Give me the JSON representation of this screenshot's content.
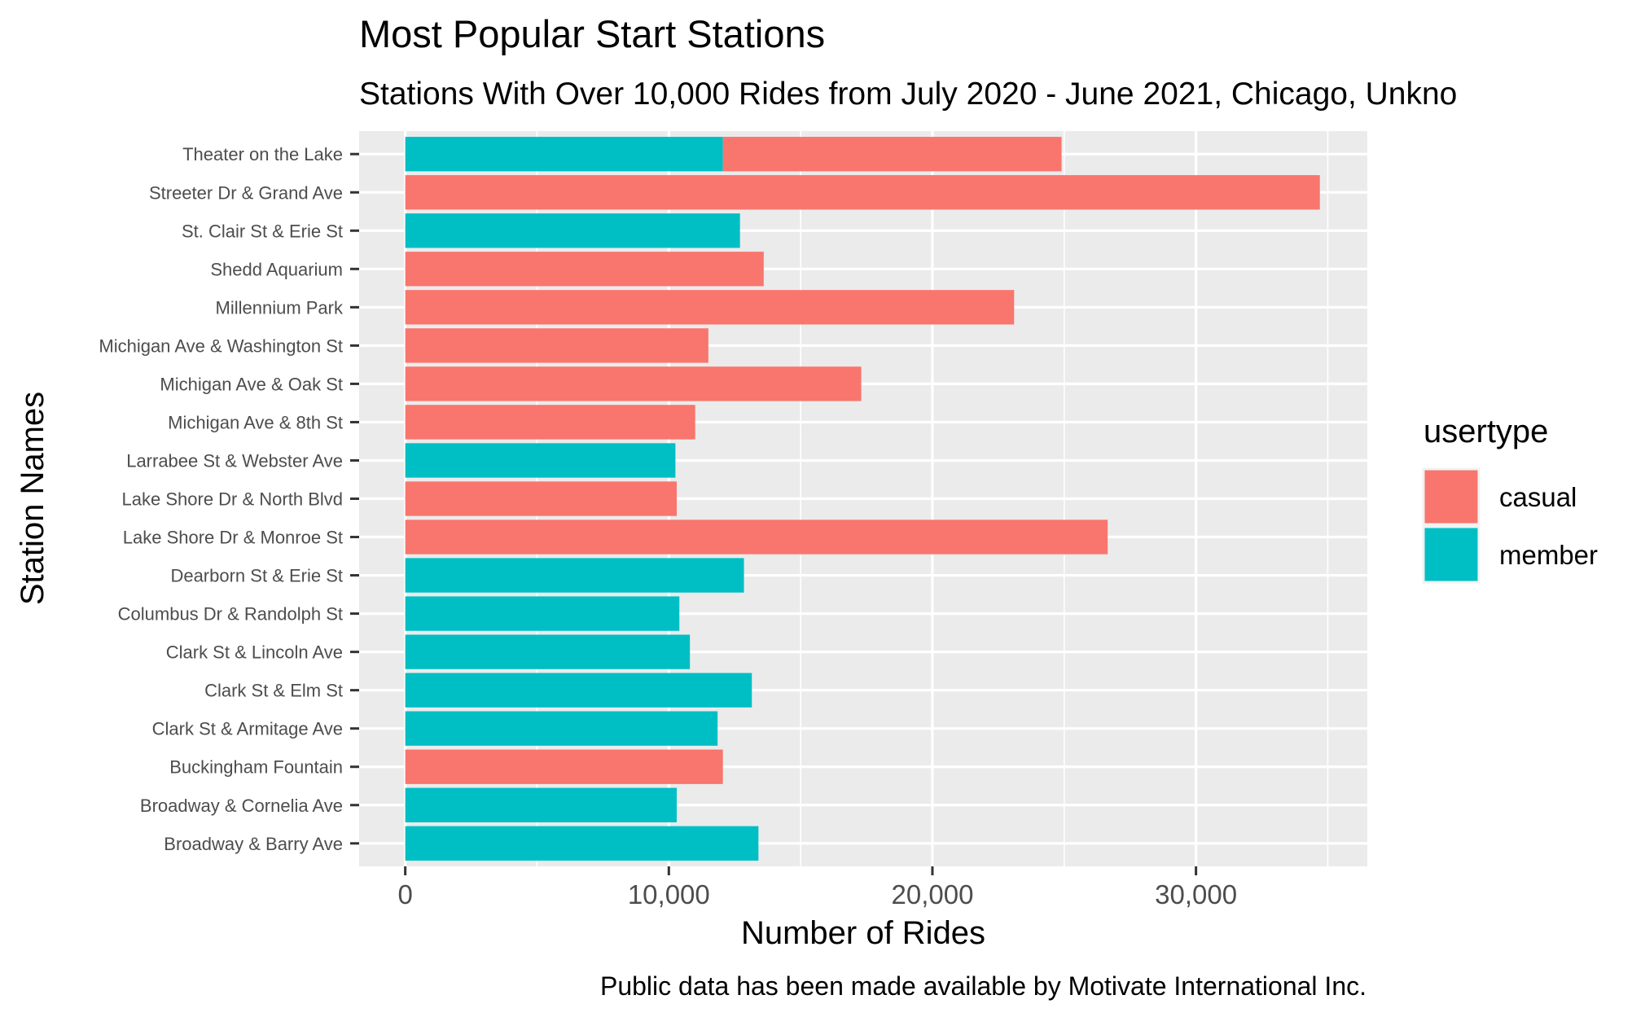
{
  "chart_data": {
    "type": "bar",
    "orientation": "horizontal",
    "stacked": true,
    "title": "Most Popular Start Stations",
    "subtitle": "Stations With Over 10,000 Rides from July 2020 - June 2021, Chicago, Unkno",
    "xlabel": "Number of Rides",
    "ylabel": "Station Names",
    "caption": "Public data has been made available by Motivate International Inc.",
    "xlim": [
      -1750,
      36500
    ],
    "x_ticks": [
      0,
      10000,
      20000,
      30000
    ],
    "x_tick_labels": [
      "0",
      "10,000",
      "20,000",
      "30,000"
    ],
    "grid": true,
    "legend": {
      "title": "usertype",
      "position": "right",
      "entries": [
        {
          "name": "casual",
          "color": "#F8766D"
        },
        {
          "name": "member",
          "color": "#00BFC4"
        }
      ]
    },
    "colors": {
      "casual": "#F8766D",
      "member": "#00BFC4",
      "panel": "#EBEBEB",
      "grid": "#FFFFFF"
    },
    "categories": [
      "Broadway & Barry Ave",
      "Broadway & Cornelia Ave",
      "Buckingham Fountain",
      "Clark St & Armitage Ave",
      "Clark St & Elm St",
      "Clark St & Lincoln Ave",
      "Columbus Dr & Randolph St",
      "Dearborn St & Erie St",
      "Lake Shore Dr & Monroe St",
      "Lake Shore Dr & North Blvd",
      "Larrabee St & Webster Ave",
      "Michigan Ave & 8th St",
      "Michigan Ave & Oak St",
      "Michigan Ave & Washington St",
      "Millennium Park",
      "Shedd Aquarium",
      "St. Clair St & Erie St",
      "Streeter Dr & Grand Ave",
      "Theater on the Lake"
    ],
    "series": [
      {
        "name": "casual",
        "values": [
          0,
          0,
          12050,
          0,
          0,
          0,
          0,
          0,
          26650,
          10300,
          0,
          11000,
          17300,
          11500,
          23100,
          13600,
          0,
          34700,
          12850
        ]
      },
      {
        "name": "member",
        "values": [
          13400,
          10300,
          0,
          11850,
          13150,
          10800,
          10400,
          12850,
          0,
          0,
          10250,
          0,
          0,
          0,
          0,
          0,
          12700,
          0,
          12050
        ]
      }
    ]
  }
}
